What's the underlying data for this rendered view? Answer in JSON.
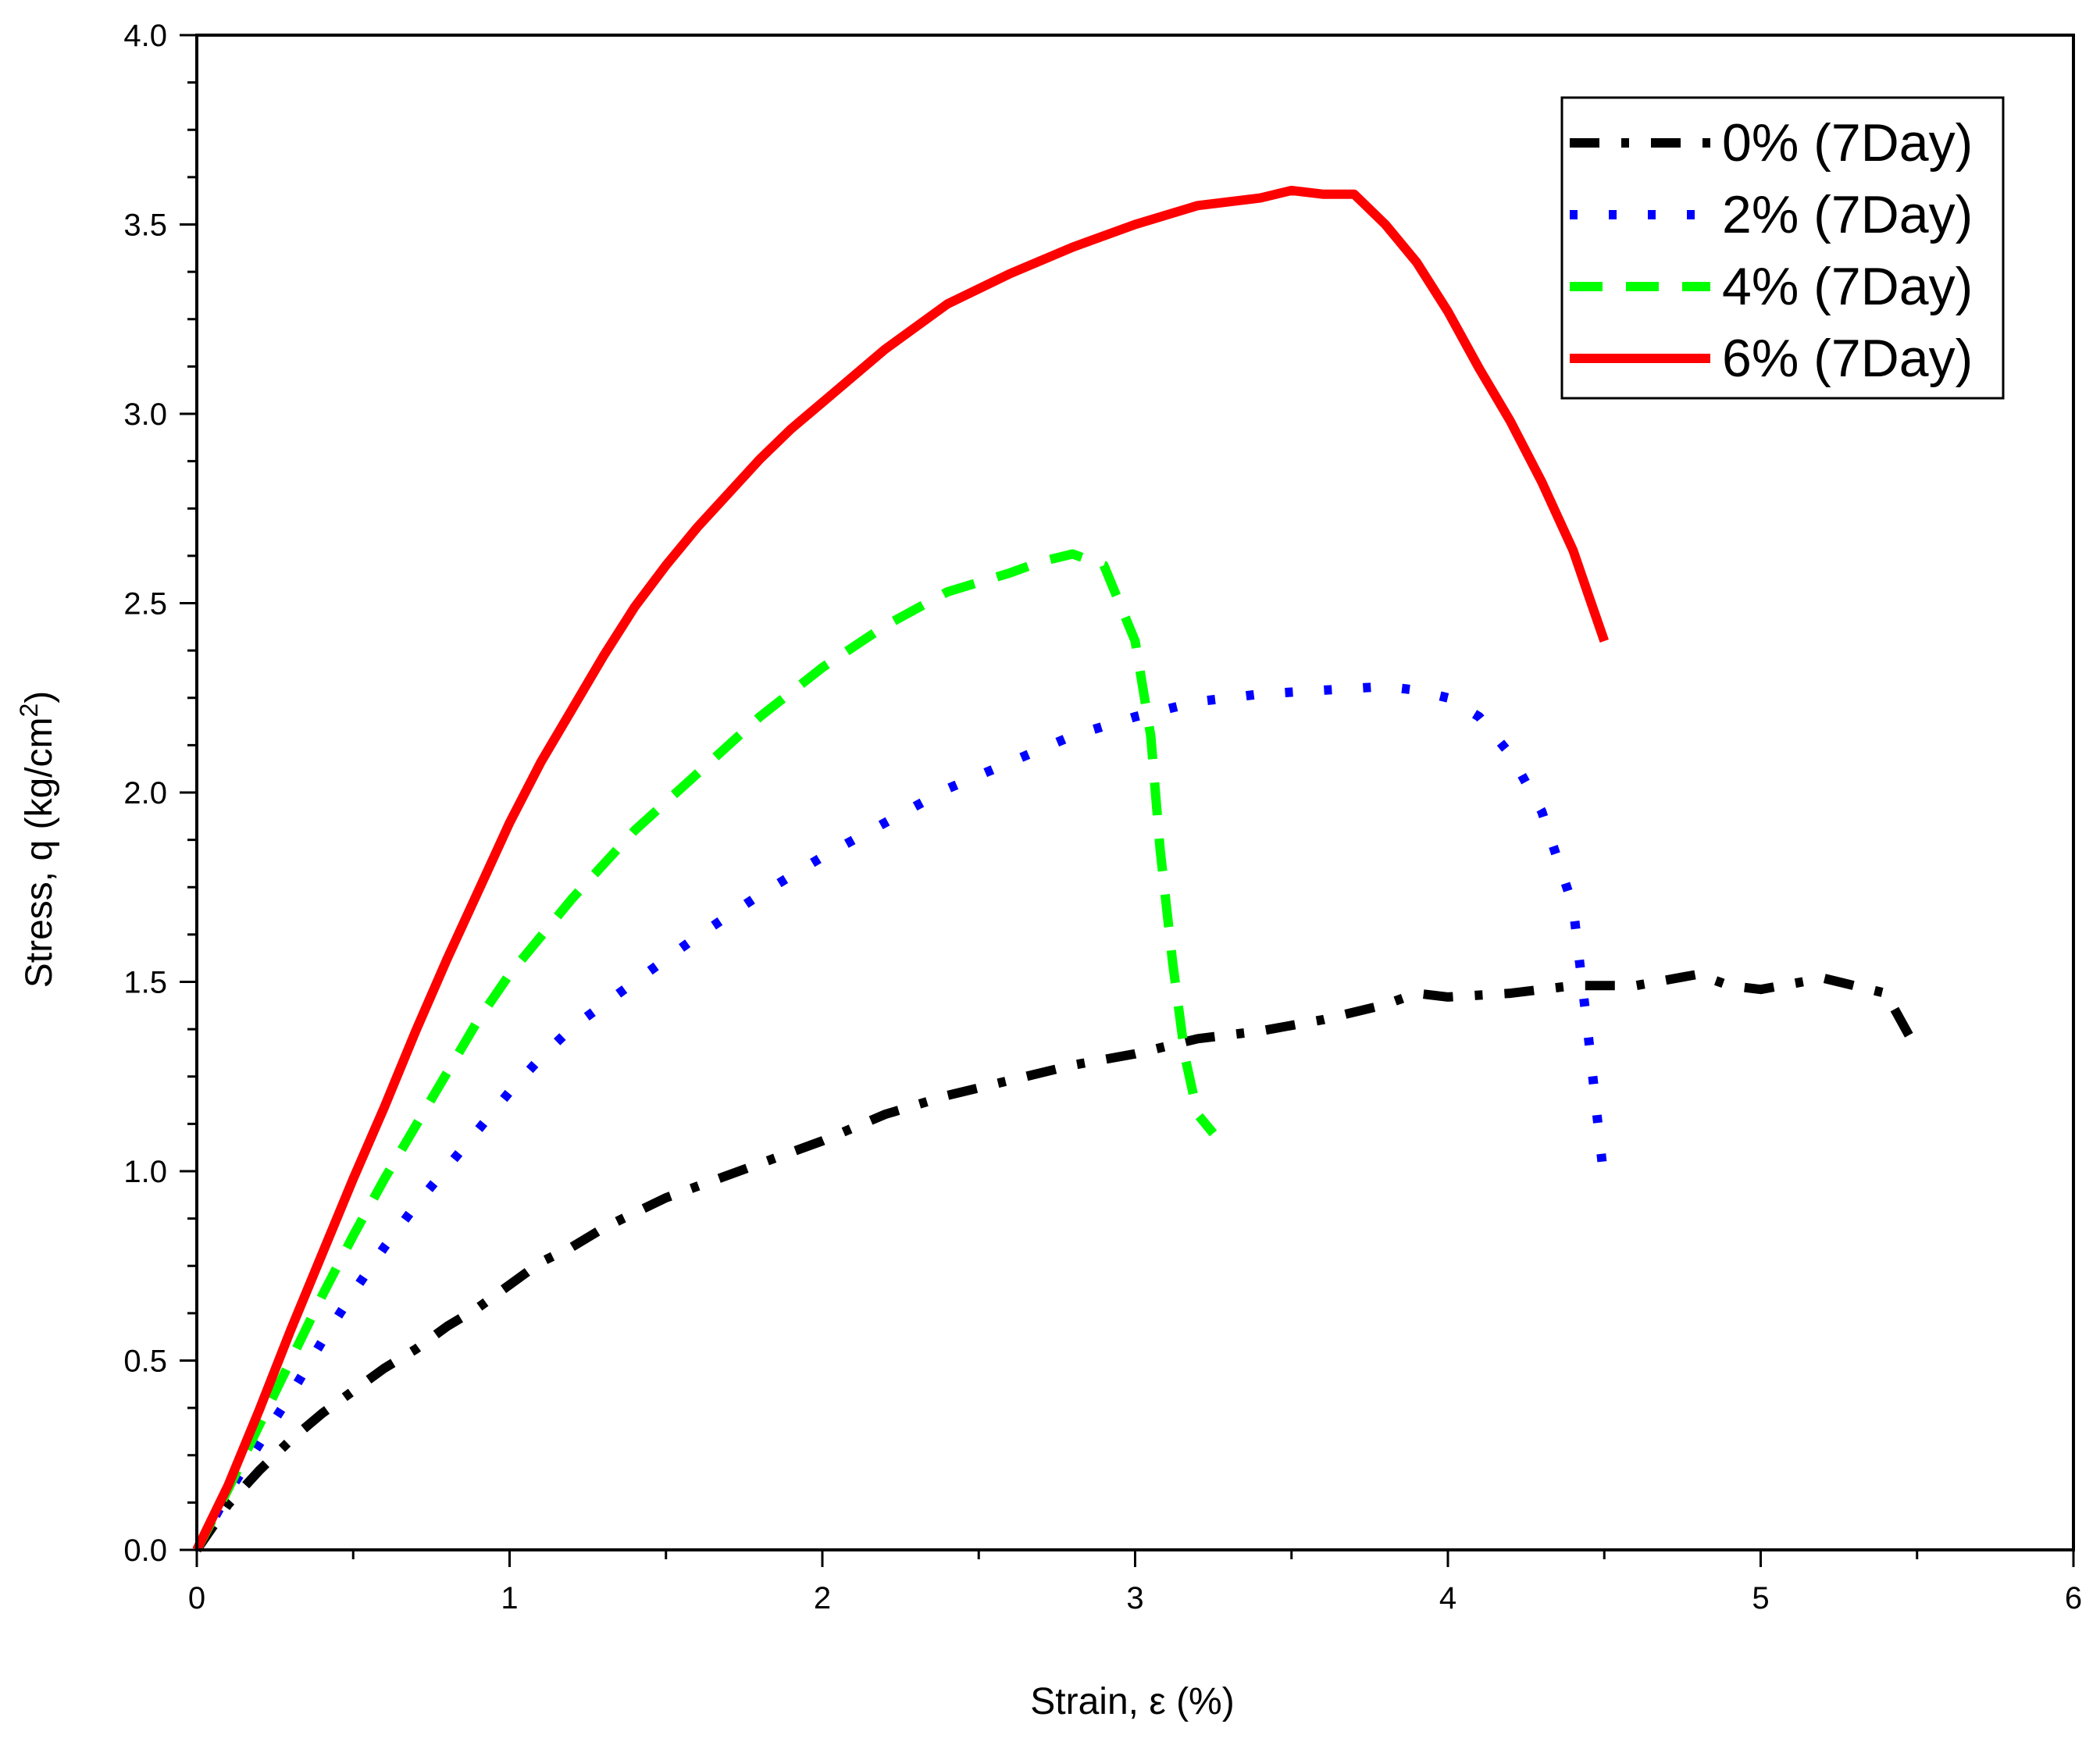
{
  "chart_data": {
    "type": "line",
    "title": "",
    "xlabel": "Strain, ε (%)",
    "ylabel_main": "Stress, q (kg/cm",
    "ylabel_sup": "2",
    "ylabel_close": ")",
    "xlim": [
      0,
      6
    ],
    "ylim": [
      0,
      4
    ],
    "xticks": [
      0,
      1,
      2,
      3,
      4,
      5,
      6
    ],
    "xtick_labels": [
      "0",
      "1",
      "2",
      "3",
      "4",
      "5",
      "6"
    ],
    "yticks": [
      0,
      0.5,
      1,
      1.5,
      2,
      2.5,
      3,
      3.5,
      4
    ],
    "ytick_labels": [
      "0.0",
      "0.5",
      "1.0",
      "1.5",
      "2.0",
      "2.5",
      "3.0",
      "3.5",
      "4.0"
    ],
    "legend_position": "top-right",
    "series": [
      {
        "name": "0% (7Day)",
        "color": "#000000",
        "dash": "dash-dot",
        "x": [
          0,
          0.1,
          0.2,
          0.3,
          0.4,
          0.5,
          0.6,
          0.7,
          0.8,
          0.9,
          1.0,
          1.1,
          1.2,
          1.3,
          1.4,
          1.5,
          1.6,
          1.8,
          2.0,
          2.2,
          2.4,
          2.6,
          2.8,
          3.0,
          3.2,
          3.4,
          3.6,
          3.8,
          3.9,
          4.0,
          4.2,
          4.4,
          4.6,
          4.8,
          4.9,
          5.0,
          5.2,
          5.4,
          5.5
        ],
        "y": [
          0,
          0.12,
          0.21,
          0.29,
          0.36,
          0.42,
          0.48,
          0.53,
          0.59,
          0.64,
          0.7,
          0.76,
          0.8,
          0.85,
          0.89,
          0.93,
          0.96,
          1.02,
          1.08,
          1.15,
          1.2,
          1.24,
          1.28,
          1.31,
          1.35,
          1.37,
          1.4,
          1.44,
          1.47,
          1.46,
          1.47,
          1.49,
          1.49,
          1.52,
          1.49,
          1.48,
          1.51,
          1.47,
          1.32
        ]
      },
      {
        "name": "2% (7Day)",
        "color": "#0000ff",
        "dash": "dot",
        "x": [
          0,
          0.1,
          0.2,
          0.3,
          0.4,
          0.5,
          0.6,
          0.7,
          0.8,
          0.9,
          1.0,
          1.1,
          1.2,
          1.4,
          1.6,
          1.8,
          2.0,
          2.2,
          2.4,
          2.6,
          2.8,
          3.0,
          3.2,
          3.4,
          3.6,
          3.8,
          3.9,
          4.0,
          4.1,
          4.2,
          4.3,
          4.4,
          4.45,
          4.5
        ],
        "y": [
          0,
          0.15,
          0.28,
          0.41,
          0.55,
          0.68,
          0.8,
          0.91,
          1.01,
          1.11,
          1.21,
          1.3,
          1.38,
          1.5,
          1.62,
          1.73,
          1.83,
          1.92,
          2.01,
          2.08,
          2.15,
          2.2,
          2.24,
          2.26,
          2.27,
          2.28,
          2.27,
          2.25,
          2.2,
          2.1,
          1.95,
          1.7,
          1.35,
          0.97
        ]
      },
      {
        "name": "4% (7Day)",
        "color": "#00ff00",
        "dash": "dash",
        "x": [
          0,
          0.1,
          0.2,
          0.3,
          0.4,
          0.5,
          0.6,
          0.7,
          0.8,
          0.9,
          1.0,
          1.2,
          1.4,
          1.6,
          1.8,
          2.0,
          2.2,
          2.4,
          2.6,
          2.7,
          2.8,
          2.9,
          3.0,
          3.05,
          3.08,
          3.12,
          3.16,
          3.2,
          3.25
        ],
        "y": [
          0,
          0.16,
          0.33,
          0.5,
          0.67,
          0.83,
          0.98,
          1.12,
          1.26,
          1.4,
          1.52,
          1.72,
          1.9,
          2.05,
          2.2,
          2.33,
          2.44,
          2.53,
          2.58,
          2.61,
          2.63,
          2.6,
          2.4,
          2.15,
          1.85,
          1.55,
          1.3,
          1.15,
          1.1
        ]
      },
      {
        "name": "6% (7Day)",
        "color": "#ff0000",
        "dash": "solid",
        "x": [
          0,
          0.1,
          0.2,
          0.3,
          0.4,
          0.5,
          0.6,
          0.7,
          0.8,
          0.9,
          1.0,
          1.1,
          1.2,
          1.3,
          1.4,
          1.5,
          1.6,
          1.7,
          1.8,
          1.9,
          2.0,
          2.2,
          2.4,
          2.6,
          2.8,
          3.0,
          3.2,
          3.4,
          3.5,
          3.6,
          3.7,
          3.8,
          3.9,
          4.0,
          4.1,
          4.2,
          4.3,
          4.4,
          4.45,
          4.5
        ],
        "y": [
          0,
          0.17,
          0.37,
          0.58,
          0.78,
          0.98,
          1.17,
          1.37,
          1.56,
          1.74,
          1.92,
          2.08,
          2.22,
          2.36,
          2.49,
          2.6,
          2.7,
          2.79,
          2.88,
          2.96,
          3.03,
          3.17,
          3.29,
          3.37,
          3.44,
          3.5,
          3.55,
          3.57,
          3.59,
          3.58,
          3.58,
          3.5,
          3.4,
          3.27,
          3.12,
          2.98,
          2.82,
          2.64,
          2.52,
          2.4
        ]
      }
    ]
  }
}
